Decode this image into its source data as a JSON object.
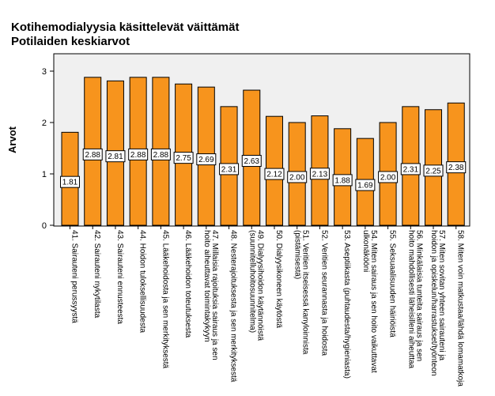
{
  "chart_data": {
    "type": "bar",
    "title": "Kotihemodialyysia käsittelevät väittämät",
    "subtitle": "Potilaiden keskiarvot",
    "ylabel": "Arvot",
    "xlabel": "",
    "ylim": [
      0,
      3
    ],
    "yticks": [
      0,
      1,
      2,
      3
    ],
    "categories": [
      "41. Sairauteni perussyystä",
      "42. Sairauteni nykytilasta",
      "43. Sairauteni ennusteesta",
      "44. Hoidon tuloksellisuudesta",
      "45. Lääkehoidosta ja sen merkityksestä",
      "46. Lääkehoidon toteutuksesta",
      "47. Millaisia rajoituksia sairaus ja sen hoito aiheuttavat toimintakykyyn",
      "48. Nesterajoituksesta ja sen merkityksestä",
      "49. Dialyysihoidon käytännöistä (suunnitelluhoitosuunnitelma)",
      "50. Dialyysikoneen käytöstä",
      "51. Veritien itseisessä kanyloinnista (pistämisestä)",
      "52. Veritien seurannasta ja hoidosta",
      "53. Aseptiikasta (puhtaudesta/hygieniasta)",
      "54. Miten sairaus ja sen hoito vaikuttavat ulkonäkööni",
      "55. Seksuaalisuuden häiriöistä",
      "56. Minkälaisia tunteita sairaus ja sen hoito mahdollisesti läheisilleni aiheuttaa",
      "57. Miten sovitan yhteen sairauteni ja hoidon ja opiskelun/harrastukset/työnteon",
      "58. Miten voin matkustaa/lähdä lomamatkoja"
    ],
    "values": [
      1.81,
      2.88,
      2.81,
      2.88,
      2.88,
      2.75,
      2.69,
      2.31,
      2.63,
      2.12,
      2.0,
      2.13,
      1.88,
      1.69,
      2.0,
      2.31,
      2.25,
      2.38
    ],
    "value_labels": [
      "1.81",
      "2.88",
      "2.81",
      "2.88",
      "2.88",
      "2.75",
      "2.69",
      "2.31",
      "2.63",
      "2.12",
      "2.00",
      "2.13",
      "1.88",
      "1.69",
      "2.00",
      "2.31",
      "2.25",
      "2.38"
    ],
    "grid": false,
    "legend": "none",
    "colors": {
      "bar": "#f7941d",
      "bar_stroke": "#000000",
      "plot_bg": "#f0f0f0",
      "label_box": "#ffffff"
    }
  }
}
